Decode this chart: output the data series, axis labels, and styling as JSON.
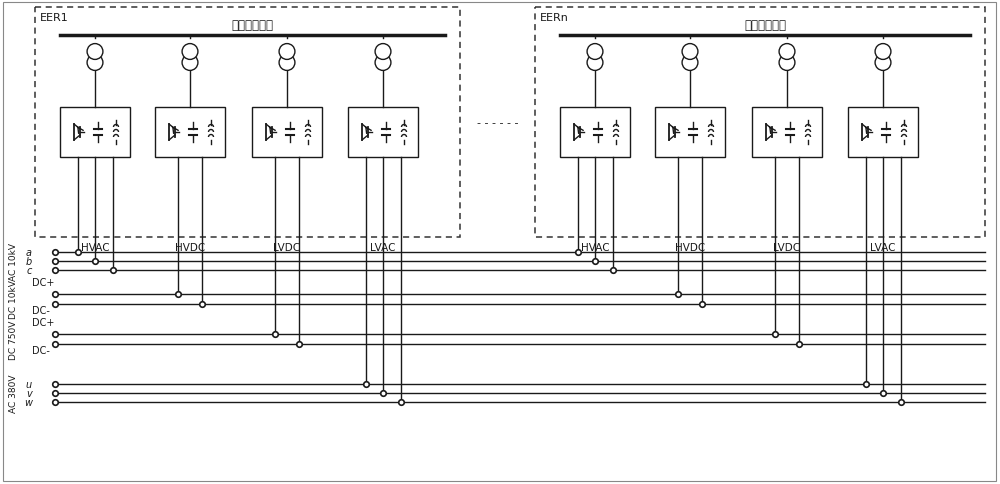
{
  "bg_color": "#ffffff",
  "line_color": "#1a1a1a",
  "eer1_label": "EER1",
  "eern_label": "EERn",
  "bus_label": "交流汇集母线",
  "port_labels_left": [
    "HVAC",
    "HVDC",
    "LVDC",
    "LVAC"
  ],
  "port_labels_right": [
    "HVAC",
    "HVDC",
    "LVDC",
    "LVAC"
  ],
  "side_labels_rotated": [
    "AC 10kV",
    "DC 10kV",
    "DC 750V",
    "AC 380V"
  ],
  "ac10_lines": [
    "a",
    "b",
    "c"
  ],
  "dc10_lines": [
    "DC+",
    "DC-"
  ],
  "dc750_lines": [
    "DC+",
    "DC-"
  ],
  "ac380_lines": [
    "u",
    "v",
    "w"
  ],
  "dots_between": "- - - - - -"
}
